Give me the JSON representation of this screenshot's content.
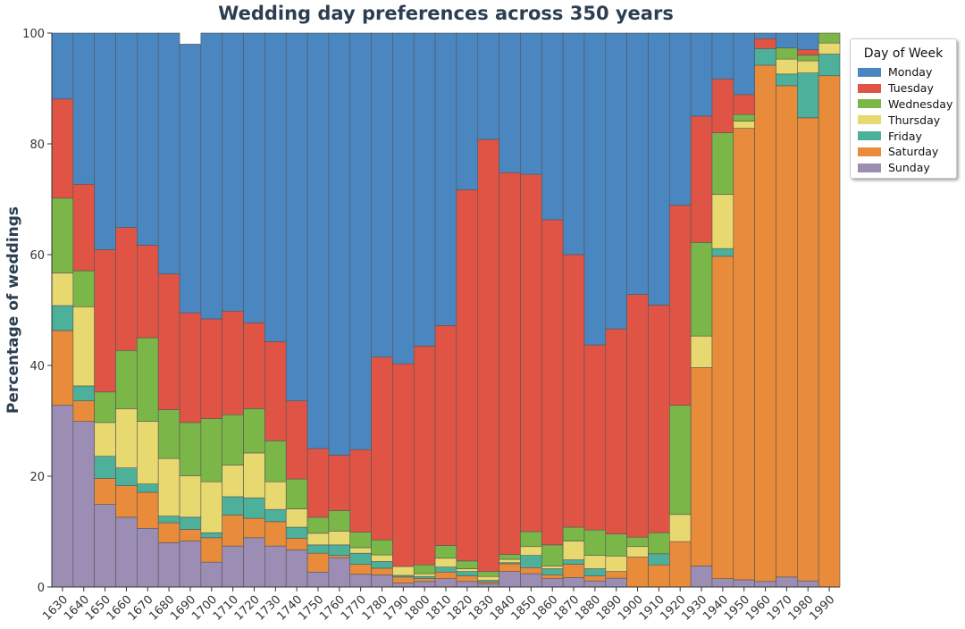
{
  "chart_data": {
    "type": "bar",
    "stacked": true,
    "title": "Wedding day preferences across 350 years",
    "xlabel": "",
    "ylabel": "Percentage of weddings",
    "ylim": [
      0,
      100
    ],
    "yticks": [
      "0",
      "20",
      "40",
      "60",
      "80",
      "100"
    ],
    "grid": false,
    "legend_title": "Day of Week",
    "legend_position": "right",
    "categories": [
      "1630",
      "1640",
      "1650",
      "1660",
      "1670",
      "1680",
      "1690",
      "1700",
      "1710",
      "1720",
      "1730",
      "1740",
      "1750",
      "1760",
      "1770",
      "1780",
      "1790",
      "1800",
      "1810",
      "1820",
      "1830",
      "1840",
      "1850",
      "1860",
      "1870",
      "1880",
      "1890",
      "1900",
      "1910",
      "1920",
      "1930",
      "1940",
      "1950",
      "1960",
      "1970",
      "1980",
      "1990"
    ],
    "series": [
      {
        "name": "Sunday",
        "color": "#9b8db4",
        "values": [
          32.8,
          29.9,
          14.9,
          12.6,
          10.6,
          8.0,
          8.3,
          4.5,
          7.4,
          8.9,
          7.4,
          6.7,
          2.7,
          5.3,
          2.3,
          2.2,
          0.7,
          1.0,
          1.5,
          1.0,
          0.6,
          2.8,
          2.4,
          1.5,
          1.7,
          1.1,
          1.6,
          0,
          0,
          0,
          3.8,
          1.5,
          1.3,
          1.0,
          1.8,
          1.1,
          0
        ]
      },
      {
        "name": "Saturday",
        "color": "#e88b3a",
        "values": [
          13.5,
          3.7,
          4.7,
          5.7,
          6.5,
          3.6,
          2.1,
          4.4,
          5.6,
          3.5,
          4.4,
          2.1,
          3.4,
          0.4,
          1.8,
          1.2,
          1.1,
          0.5,
          1.2,
          1.0,
          0.3,
          1.4,
          1.1,
          0.7,
          2.4,
          0.9,
          1.2,
          5.4,
          4.0,
          8.2,
          35.8,
          58.2,
          81.5,
          93.2,
          88.7,
          83.6,
          92.3
        ]
      },
      {
        "name": "Friday",
        "color": "#4db09a",
        "values": [
          4.5,
          2.7,
          4.0,
          3.2,
          1.5,
          1.2,
          2.2,
          0.9,
          3.3,
          3.7,
          2.2,
          2.0,
          1.5,
          1.9,
          2.0,
          1.2,
          0.3,
          0.4,
          0.9,
          0.8,
          0.3,
          0.2,
          2.2,
          1.1,
          0.8,
          1.3,
          0,
          0,
          2.0,
          0,
          0,
          1.4,
          0,
          3.0,
          2.1,
          8.1,
          3.9
        ]
      },
      {
        "name": "Thursday",
        "color": "#e8d870",
        "values": [
          5.9,
          14.3,
          6.1,
          10.7,
          11.3,
          10.4,
          7.5,
          9.2,
          5.7,
          8.1,
          5.0,
          3.3,
          2.1,
          2.5,
          1.0,
          1.2,
          1.6,
          0.5,
          1.6,
          0.5,
          0.7,
          0.6,
          1.6,
          0.5,
          3.4,
          2.4,
          2.8,
          1.9,
          0,
          4.9,
          5.7,
          9.8,
          1.3,
          0,
          2.7,
          2.2,
          2.0
        ]
      },
      {
        "name": "Wednesday",
        "color": "#7ab648",
        "values": [
          13.5,
          6.5,
          5.5,
          10.5,
          15.1,
          8.8,
          9.6,
          11.4,
          9.1,
          8.0,
          7.4,
          5.4,
          2.9,
          3.7,
          2.8,
          2.7,
          0,
          1.6,
          2.3,
          1.4,
          0.9,
          0.9,
          2.7,
          3.8,
          2.5,
          4.6,
          4.0,
          1.7,
          3.8,
          19.7,
          16.9,
          11.1,
          1.2,
          0,
          2.0,
          1.0,
          1.8
        ]
      },
      {
        "name": "Tuesday",
        "color": "#e05445",
        "values": [
          17.9,
          15.6,
          25.7,
          22.2,
          16.7,
          24.5,
          19.8,
          18.0,
          18.7,
          15.5,
          17.9,
          14.1,
          12.4,
          10.0,
          14.9,
          33.0,
          36.6,
          39.5,
          39.7,
          67.0,
          78.0,
          68.9,
          64.5,
          58.7,
          49.2,
          33.4,
          37.0,
          43.8,
          41.1,
          36.1,
          22.8,
          9.7,
          3.6,
          1.8,
          0,
          1.0,
          0
        ]
      },
      {
        "name": "Monday",
        "color": "#4a86c0",
        "values": [
          11.9,
          27.3,
          39.1,
          35.1,
          38.3,
          43.5,
          48.5,
          51.6,
          50.2,
          52.3,
          55.7,
          66.4,
          75.0,
          76.2,
          75.2,
          58.5,
          59.7,
          56.5,
          52.8,
          28.3,
          19.2,
          25.2,
          25.5,
          33.7,
          40.0,
          56.3,
          53.4,
          47.2,
          49.1,
          31.1,
          15.0,
          8.3,
          11.1,
          1.0,
          2.7,
          3.0,
          0
        ]
      }
    ],
    "legend_order": [
      "Monday",
      "Tuesday",
      "Wednesday",
      "Thursday",
      "Friday",
      "Saturday",
      "Sunday"
    ]
  }
}
